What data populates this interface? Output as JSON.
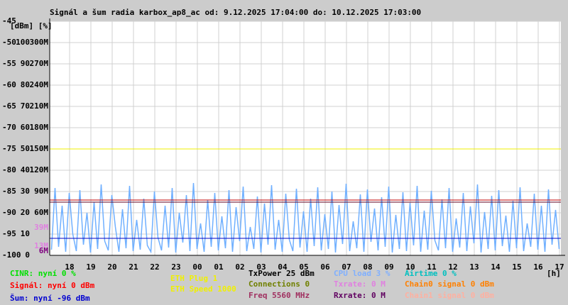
{
  "chart_data": {
    "type": "line",
    "title": "Signál a šum radia karbox_ap8_ac od: 9.12.2025 17:04:00 do: 10.12.2025 17:03:00",
    "unit_label": "[dBm] [%]",
    "x_unit_label": "[h]",
    "xlim": [
      0,
      1440
    ],
    "xticks": [
      {
        "value": 56,
        "label": "18"
      },
      {
        "value": 116,
        "label": "19"
      },
      {
        "value": 176,
        "label": "20"
      },
      {
        "value": 236,
        "label": "21"
      },
      {
        "value": 296,
        "label": "22"
      },
      {
        "value": 356,
        "label": "23"
      },
      {
        "value": 416,
        "label": "00"
      },
      {
        "value": 476,
        "label": "01"
      },
      {
        "value": 536,
        "label": "02"
      },
      {
        "value": 596,
        "label": "03"
      },
      {
        "value": 656,
        "label": "04"
      },
      {
        "value": 716,
        "label": "05"
      },
      {
        "value": 776,
        "label": "06"
      },
      {
        "value": 836,
        "label": "07"
      },
      {
        "value": 896,
        "label": "08"
      },
      {
        "value": 956,
        "label": "09"
      },
      {
        "value": 1016,
        "label": "10"
      },
      {
        "value": 1076,
        "label": "11"
      },
      {
        "value": 1136,
        "label": "12"
      },
      {
        "value": 1196,
        "label": "13"
      },
      {
        "value": 1256,
        "label": "14"
      },
      {
        "value": 1316,
        "label": "15"
      },
      {
        "value": 1376,
        "label": "16"
      },
      {
        "value": 1436,
        "label": "17"
      }
    ],
    "ylim": [
      -100,
      -45
    ],
    "yticks": [
      -45,
      -50,
      -55,
      -60,
      -65,
      -70,
      -75,
      -80,
      -85,
      -90,
      -95,
      -100
    ],
    "y2lim": [
      0,
      110
    ],
    "y2ticks": [
      100,
      90,
      80,
      70,
      60,
      50,
      40,
      30,
      20,
      10,
      0
    ],
    "y3lim": [
      0,
      330
    ],
    "y3ticks": [
      {
        "value": 300,
        "label": "300M"
      },
      {
        "value": 270,
        "label": "270M"
      },
      {
        "value": 240,
        "label": "240M"
      },
      {
        "value": 210,
        "label": "210M"
      },
      {
        "value": 180,
        "label": "180M"
      },
      {
        "value": 150,
        "label": "150M"
      },
      {
        "value": 120,
        "label": "120M"
      },
      {
        "value": 90,
        "label": "90M"
      },
      {
        "value": 60,
        "label": "60M"
      }
    ],
    "y3_markers": [
      {
        "value": 39,
        "label": "39M",
        "color": "#e080e0"
      },
      {
        "value": 13,
        "label": "13M",
        "color": "#e080e0"
      },
      {
        "value": 6,
        "label": "6M",
        "color": "#800080"
      }
    ],
    "grid": true,
    "reference_lines": [
      {
        "value": -75,
        "color": "#f0f000"
      },
      {
        "value": -87,
        "color": "#c00000"
      },
      {
        "value": -87.5,
        "color": "#600020"
      },
      {
        "value": -96,
        "color": "#0000c0"
      }
    ],
    "series": [
      {
        "color": "#70b0ff",
        "axis": "y3",
        "values": [
          8,
          95,
          12,
          70,
          5,
          88,
          30,
          6,
          92,
          15,
          60,
          4,
          75,
          9,
          100,
          20,
          7,
          85,
          40,
          5,
          65,
          10,
          98,
          6,
          50,
          8,
          80,
          14,
          5,
          90,
          25,
          7,
          70,
          11,
          95,
          4,
          60,
          18,
          85,
          6,
          102,
          9,
          45,
          5,
          78,
          12,
          88,
          7,
          55,
          10,
          92,
          5,
          68,
          20,
          97,
          6,
          40,
          9,
          83,
          4,
          73,
          15,
          99,
          8,
          50,
          5,
          87,
          22,
          6,
          94,
          11,
          62,
          5,
          80,
          13,
          96,
          7,
          58,
          9,
          90,
          4,
          71,
          16,
          101,
          6,
          48,
          10,
          86,
          5,
          93,
          19,
          66,
          7,
          82,
          12,
          97,
          4,
          57,
          9,
          89,
          6,
          74,
          14,
          98,
          5,
          63,
          8,
          91,
          21,
          7,
          79,
          10,
          95,
          5,
          52,
          11,
          88,
          6,
          69,
          17,
          100,
          4,
          61,
          9,
          84,
          7,
          92,
          13,
          56,
          5,
          77,
          10,
          96,
          6,
          45,
          12,
          87,
          8,
          70,
          5,
          93,
          15,
          64,
          9
        ]
      }
    ],
    "legend": [
      {
        "text": "CINR: nyní 0 %",
        "color": "#00e000"
      },
      {
        "text": "Signál: nyní 0 dBm",
        "color": "#ff0000"
      },
      {
        "text": "Šum: nyní -96 dBm",
        "color": "#0000d0"
      },
      {
        "text": "ETH Plug 1",
        "color": "#f0f000"
      },
      {
        "text": "ETH Speed 1000",
        "color": "#f0f000"
      },
      {
        "text": "TxPower 25 dBm",
        "color": "#000000"
      },
      {
        "text": "Connections 0",
        "color": "#708000"
      },
      {
        "text": "Freq 5560 MHz",
        "color": "#a03060"
      },
      {
        "text": "CPU load 3 %",
        "color": "#80b0ff"
      },
      {
        "text": "Txrate: 0 M",
        "color": "#e080e0"
      },
      {
        "text": "Rxrate: 0 M",
        "color": "#600060"
      },
      {
        "text": "Airtime 0 %",
        "color": "#00c0c0"
      },
      {
        "text": "Chain0 signal 0 dBm",
        "color": "#ff8000"
      },
      {
        "text": "Chain1 signal 0 dBm",
        "color": "#ffb0a0"
      }
    ]
  }
}
